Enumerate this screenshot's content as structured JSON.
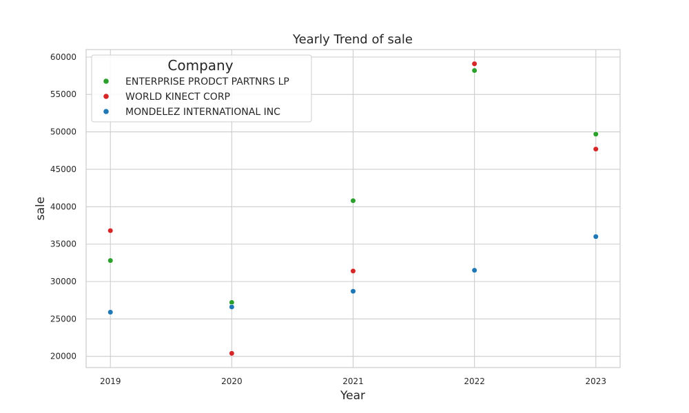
{
  "chart_data": {
    "type": "scatter",
    "title": "Yearly Trend of sale",
    "xlabel": "Year",
    "ylabel": "sale",
    "x_ticks": [
      "2019",
      "2020",
      "2021",
      "2022",
      "2023"
    ],
    "y_ticks": [
      "20000",
      "25000",
      "30000",
      "35000",
      "40000",
      "45000",
      "50000",
      "55000",
      "60000"
    ],
    "xlim": [
      2018.8,
      2023.2
    ],
    "ylim": [
      18500,
      61000
    ],
    "grid": true,
    "legend": {
      "title": "Company",
      "position": "top-left"
    },
    "series": [
      {
        "name": "ENTERPRISE PRODCT PARTNRS LP",
        "color": "#2ca02c",
        "x": [
          2019,
          2020,
          2021,
          2022,
          2023
        ],
        "y": [
          32800,
          27200,
          40800,
          58200,
          49700
        ]
      },
      {
        "name": "WORLD KINECT CORP",
        "color": "#d62728",
        "x": [
          2019,
          2020,
          2021,
          2022,
          2023
        ],
        "y": [
          36800,
          20400,
          31400,
          59100,
          47700
        ]
      },
      {
        "name": "MONDELEZ INTERNATIONAL INC",
        "color": "#1f77b4",
        "x": [
          2019,
          2020,
          2021,
          2022,
          2023
        ],
        "y": [
          25900,
          26600,
          28700,
          31500,
          36000
        ]
      }
    ]
  }
}
